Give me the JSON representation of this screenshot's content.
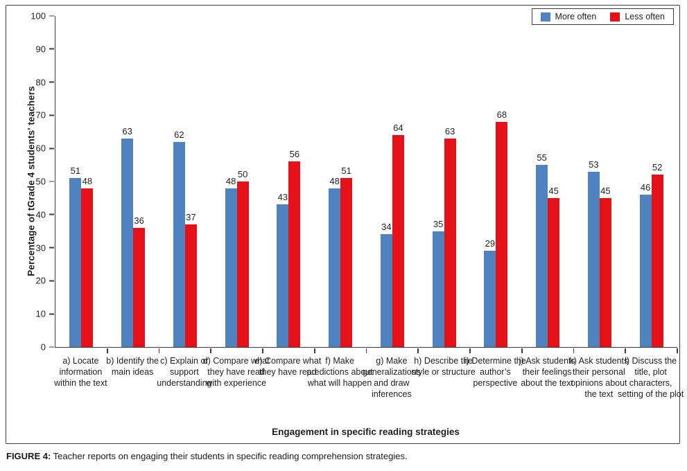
{
  "figure": {
    "caption_label": "FIGURE 4:",
    "caption_text": " Teacher reports on engaging their students in specific reading comprehension strategies."
  },
  "chart_data": {
    "type": "bar",
    "title": "",
    "xlabel": "Engagement in specific reading strategies",
    "ylabel": "Percentage of tGrade 4 students' teachers",
    "ylim": [
      0,
      100
    ],
    "ytick_step": 10,
    "grid": false,
    "legend_position": "top-right",
    "value_labels": "outside-end",
    "categories": [
      "a) Locate information within the text",
      "b) Identify the main ideas",
      "c) Explain or support understanding",
      "d) Compare what they have read with experience",
      "e) Compare what they have read",
      "f) Make predictions about what will happen",
      "g) Make generalizations and draw inferences",
      "h) Describe the style or structure",
      "i) Determine the author’s perspective",
      "j) Ask students their feelings about the text",
      "k) Ask students their personal opinions about the text",
      "l) Discuss the title, plot characters, setting of the plot"
    ],
    "series": [
      {
        "name": "More often",
        "color": "#4f83c0",
        "values": [
          51,
          63,
          62,
          48,
          43,
          48,
          34,
          35,
          29,
          55,
          53,
          46
        ]
      },
      {
        "name": "Less often",
        "color": "#e41119",
        "values": [
          48,
          36,
          37,
          50,
          56,
          51,
          64,
          63,
          68,
          45,
          45,
          52
        ]
      }
    ]
  }
}
